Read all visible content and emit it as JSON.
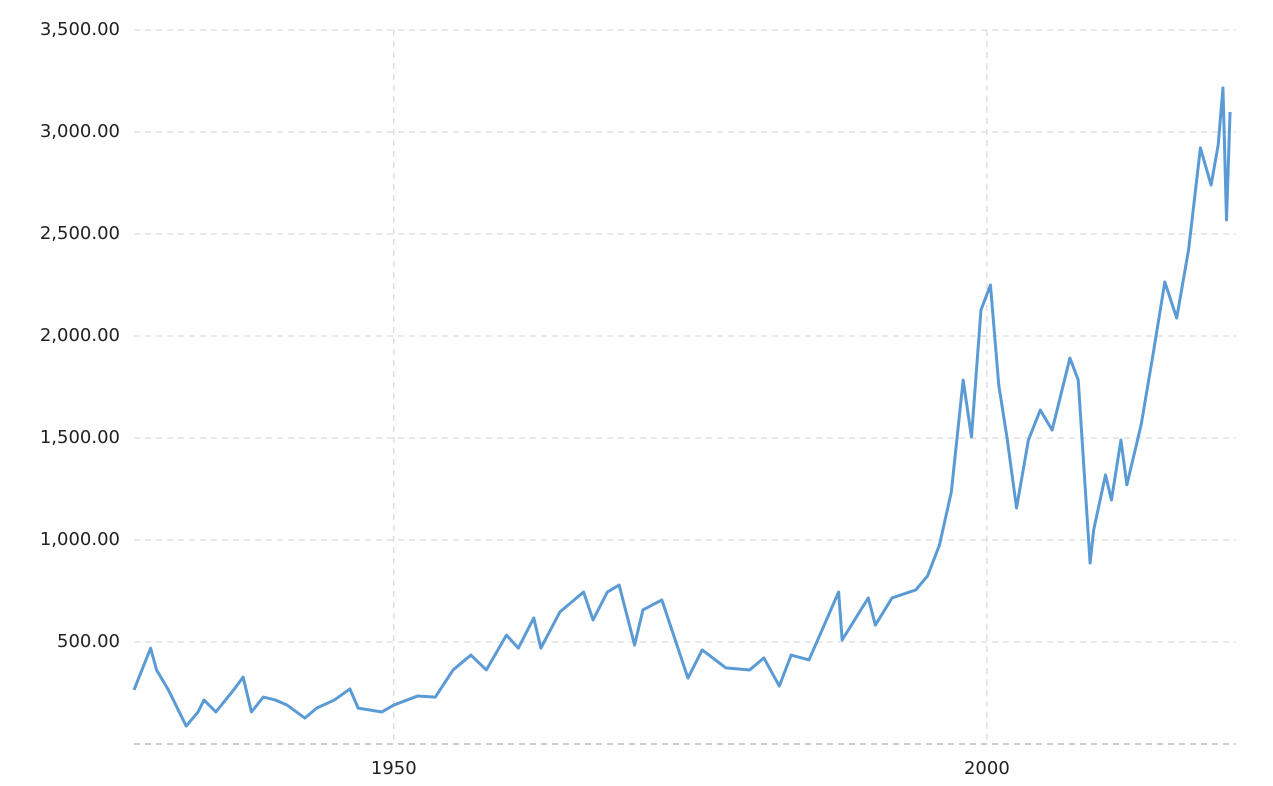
{
  "chart_data": {
    "type": "line",
    "x": [
      1928.1,
      1929.5,
      1930,
      1931,
      1932.5,
      1933.5,
      1934,
      1935,
      1936.5,
      1937.3,
      1938,
      1939,
      1940,
      1941,
      1942.5,
      1943.5,
      1945,
      1946.3,
      1947,
      1949,
      1950,
      1952,
      1953.5,
      1955,
      1956.5,
      1957.8,
      1959.5,
      1960.5,
      1961.8,
      1962.4,
      1964,
      1966,
      1966.8,
      1968,
      1969,
      1970.3,
      1971,
      1972.6,
      1974.8,
      1976,
      1978,
      1980,
      1981.2,
      1982.5,
      1983.5,
      1985,
      1987.5,
      1987.8,
      1990,
      1990.6,
      1992,
      1994,
      1995,
      1996,
      1997,
      1998,
      1998.7,
      1999.5,
      2000.3,
      2001,
      2001.7,
      2002.5,
      2003.5,
      2004.5,
      2005.5,
      2007,
      2007.7,
      2008.7,
      2009,
      2010,
      2010.5,
      2011.3,
      2011.8,
      2013,
      2014,
      2015,
      2016,
      2017,
      2018,
      2018.9,
      2019.5,
      2019.9,
      2020.2,
      2020.5
    ],
    "series": [
      {
        "color": "#5b9bd5",
        "values": [
          265,
          470,
          363,
          265,
          88,
          157,
          216,
          157,
          265,
          328,
          157,
          230,
          216,
          191,
          127,
          176,
          216,
          270,
          176,
          157,
          191,
          235,
          230,
          363,
          436,
          363,
          534,
          470,
          618,
          470,
          647,
          745,
          608,
          745,
          779,
          485,
          657,
          706,
          323,
          461,
          373,
          363,
          422,
          284,
          436,
          412,
          745,
          510,
          716,
          583,
          716,
          755,
          824,
          975,
          1235,
          1784,
          1505,
          2127,
          2250,
          1760,
          1500,
          1157,
          1490,
          1637,
          1539,
          1892,
          1784,
          887,
          1049,
          1319,
          1196,
          1490,
          1270,
          1564,
          1907,
          2265,
          2088,
          2422,
          2922,
          2740,
          2937,
          3216,
          2569,
          3098
        ]
      }
    ],
    "xlim": [
      1928.1,
      2021
    ],
    "xticks": [
      1950,
      2000
    ],
    "ylim": [
      0,
      3500
    ],
    "yticks": [
      {
        "value": 500,
        "label": "500.00"
      },
      {
        "value": 1000,
        "label": "1,000.00"
      },
      {
        "value": 1500,
        "label": "1,500.00"
      },
      {
        "value": 2000,
        "label": "2,000.00"
      },
      {
        "value": 2500,
        "label": "2,500.00"
      },
      {
        "value": 3000,
        "label": "3,000.00"
      },
      {
        "value": 3500,
        "label": "3,500.00"
      }
    ],
    "grid": true
  }
}
